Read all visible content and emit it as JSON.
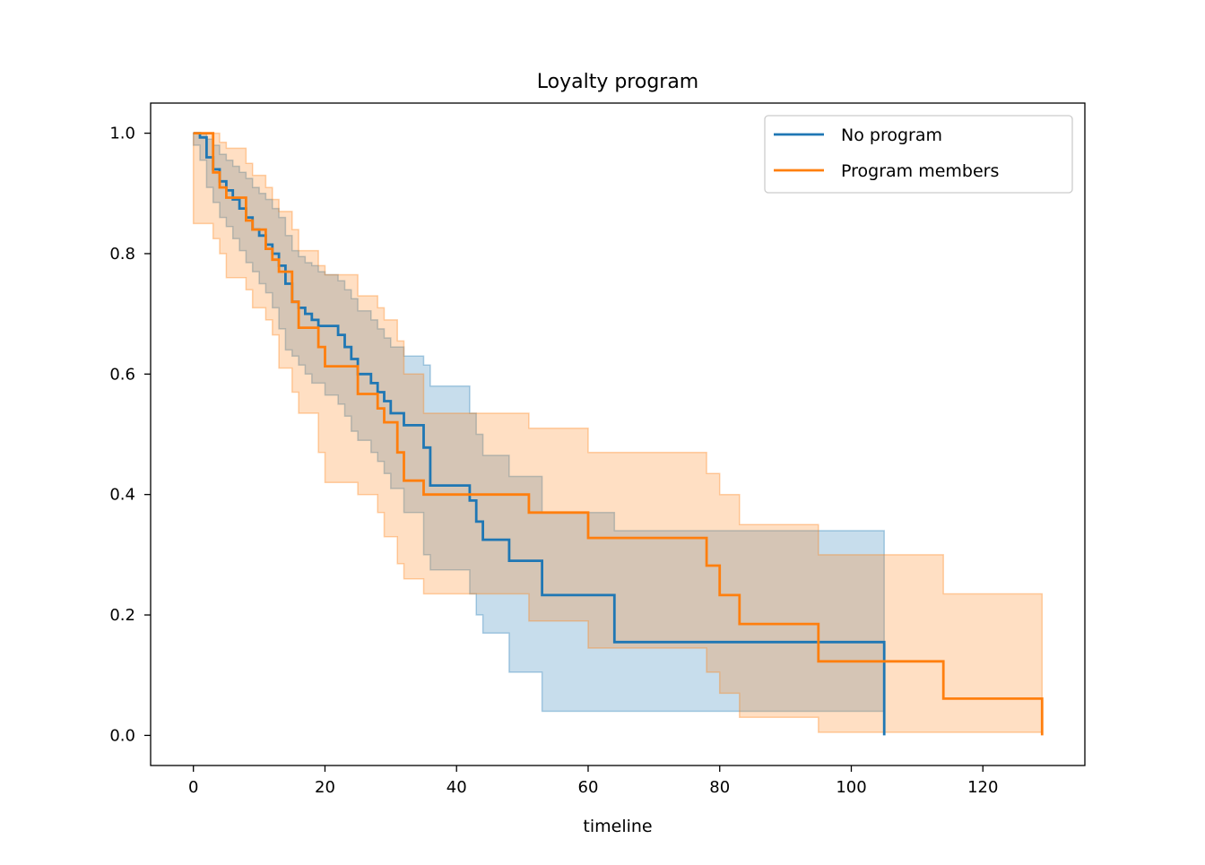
{
  "chart_data": {
    "type": "line",
    "title": "Loyalty program",
    "xlabel": "timeline",
    "ylabel": "",
    "xlim": [
      -6.5,
      135.5
    ],
    "ylim": [
      -0.05,
      1.05
    ],
    "x_ticks": [
      0,
      20,
      40,
      60,
      80,
      100,
      120
    ],
    "y_ticks": [
      0.0,
      0.2,
      0.4,
      0.6,
      0.8,
      1.0
    ],
    "x_tick_labels": [
      "0",
      "20",
      "40",
      "60",
      "80",
      "100",
      "120"
    ],
    "y_tick_labels": [
      "0.0",
      "0.2",
      "0.4",
      "0.6",
      "0.8",
      "1.0"
    ],
    "grid": false,
    "legend_position": "top-right",
    "series": [
      {
        "name": "No program",
        "color": "#1f77b4",
        "step": "post",
        "x": [
          0,
          1,
          2,
          3,
          4,
          5,
          6,
          7,
          8,
          9,
          10,
          11,
          12,
          13,
          14,
          15,
          16,
          17,
          18,
          19,
          20,
          22,
          23,
          24,
          25,
          27,
          28,
          29,
          30,
          32,
          35,
          36,
          42,
          43,
          44,
          48,
          53,
          64,
          105
        ],
        "y": [
          1.0,
          0.993,
          0.96,
          0.94,
          0.92,
          0.905,
          0.89,
          0.875,
          0.86,
          0.84,
          0.83,
          0.815,
          0.8,
          0.78,
          0.75,
          0.72,
          0.71,
          0.7,
          0.69,
          0.68,
          0.68,
          0.665,
          0.645,
          0.625,
          0.6,
          0.585,
          0.57,
          0.555,
          0.535,
          0.515,
          0.478,
          0.415,
          0.39,
          0.355,
          0.325,
          0.29,
          0.233,
          0.155,
          0.0
        ],
        "ci_upper": [
          1.0,
          1.0,
          0.99,
          0.98,
          0.965,
          0.955,
          0.945,
          0.935,
          0.925,
          0.91,
          0.9,
          0.89,
          0.875,
          0.86,
          0.83,
          0.805,
          0.795,
          0.785,
          0.78,
          0.77,
          0.765,
          0.755,
          0.74,
          0.725,
          0.705,
          0.69,
          0.675,
          0.66,
          0.645,
          0.63,
          0.615,
          0.58,
          0.535,
          0.5,
          0.465,
          0.43,
          0.37,
          0.34,
          0.34
        ],
        "ci_lower": [
          1.0,
          0.98,
          0.955,
          0.91,
          0.885,
          0.86,
          0.845,
          0.825,
          0.805,
          0.785,
          0.77,
          0.75,
          0.735,
          0.71,
          0.675,
          0.64,
          0.63,
          0.615,
          0.6,
          0.585,
          0.585,
          0.565,
          0.55,
          0.53,
          0.505,
          0.49,
          0.47,
          0.455,
          0.435,
          0.41,
          0.37,
          0.3,
          0.275,
          0.235,
          0.2,
          0.17,
          0.105,
          0.04,
          0.04
        ]
      },
      {
        "name": "Program members",
        "color": "#ff7f0e",
        "step": "post",
        "x": [
          0,
          3,
          4,
          5,
          8,
          9,
          11,
          12,
          13,
          15,
          16,
          19,
          20,
          25,
          28,
          29,
          31,
          32,
          35,
          51,
          60,
          78,
          80,
          83,
          95,
          114,
          129
        ],
        "y": [
          1.0,
          0.935,
          0.91,
          0.893,
          0.855,
          0.84,
          0.808,
          0.79,
          0.77,
          0.72,
          0.677,
          0.645,
          0.613,
          0.567,
          0.543,
          0.52,
          0.47,
          0.423,
          0.4,
          0.37,
          0.328,
          0.282,
          0.233,
          0.185,
          0.123,
          0.061,
          0.0
        ],
        "ci_upper": [
          1.0,
          1.0,
          0.985,
          0.975,
          0.95,
          0.93,
          0.91,
          0.89,
          0.87,
          0.84,
          0.805,
          0.78,
          0.765,
          0.73,
          0.71,
          0.69,
          0.655,
          0.6,
          0.535,
          0.51,
          0.47,
          0.435,
          0.4,
          0.35,
          0.3,
          0.235,
          0.235
        ],
        "ci_lower": [
          1.0,
          0.85,
          0.825,
          0.8,
          0.76,
          0.74,
          0.71,
          0.69,
          0.665,
          0.61,
          0.57,
          0.535,
          0.47,
          0.42,
          0.4,
          0.37,
          0.33,
          0.285,
          0.26,
          0.235,
          0.19,
          0.145,
          0.105,
          0.07,
          0.03,
          0.005,
          0.005
        ]
      }
    ]
  }
}
